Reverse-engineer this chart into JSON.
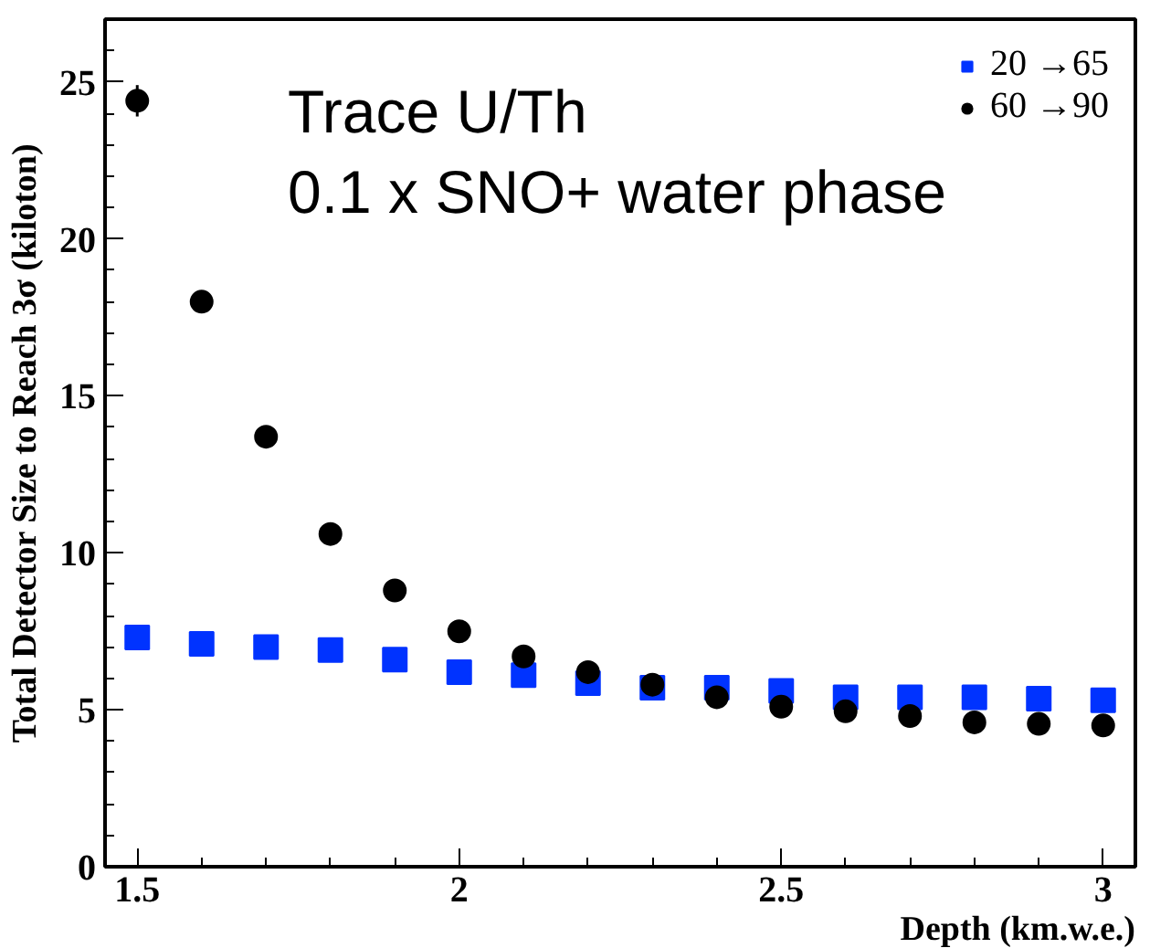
{
  "chart_data": {
    "type": "scatter",
    "xlabel": "Depth (km.w.e.)",
    "ylabel": "Total Detector Size to Reach 3σ (kiloton)",
    "x": [
      1.5,
      1.6,
      1.7,
      1.8,
      1.9,
      2.0,
      2.1,
      2.2,
      2.3,
      2.4,
      2.5,
      2.6,
      2.7,
      2.8,
      2.9,
      3.0
    ],
    "series": [
      {
        "name": "20 →65",
        "color": "#0033ff",
        "marker": "square",
        "values": [
          7.3,
          7.1,
          7.0,
          6.9,
          6.6,
          6.2,
          6.1,
          5.85,
          5.7,
          5.7,
          5.6,
          5.4,
          5.4,
          5.4,
          5.35,
          5.3
        ]
      },
      {
        "name": "60 →90",
        "color": "#000000",
        "marker": "circle",
        "values": [
          24.4,
          18.0,
          13.7,
          10.6,
          8.8,
          7.5,
          6.7,
          6.2,
          5.8,
          5.4,
          5.1,
          4.95,
          4.8,
          4.6,
          4.55,
          4.5
        ],
        "errors": [
          0.5,
          0.3,
          null,
          null,
          null,
          null,
          null,
          null,
          null,
          null,
          null,
          null,
          null,
          null,
          null,
          null
        ]
      }
    ],
    "xlim": [
      1.45,
      3.05
    ],
    "xticks": [
      1.5,
      2,
      2.5,
      3
    ],
    "ylim": [
      0,
      27
    ],
    "yticks": [
      0,
      5,
      10,
      15,
      20,
      25
    ],
    "grid": false,
    "legend": "top right",
    "annotations": [
      "Trace U/Th",
      "0.1 x SNO+ water phase"
    ]
  }
}
